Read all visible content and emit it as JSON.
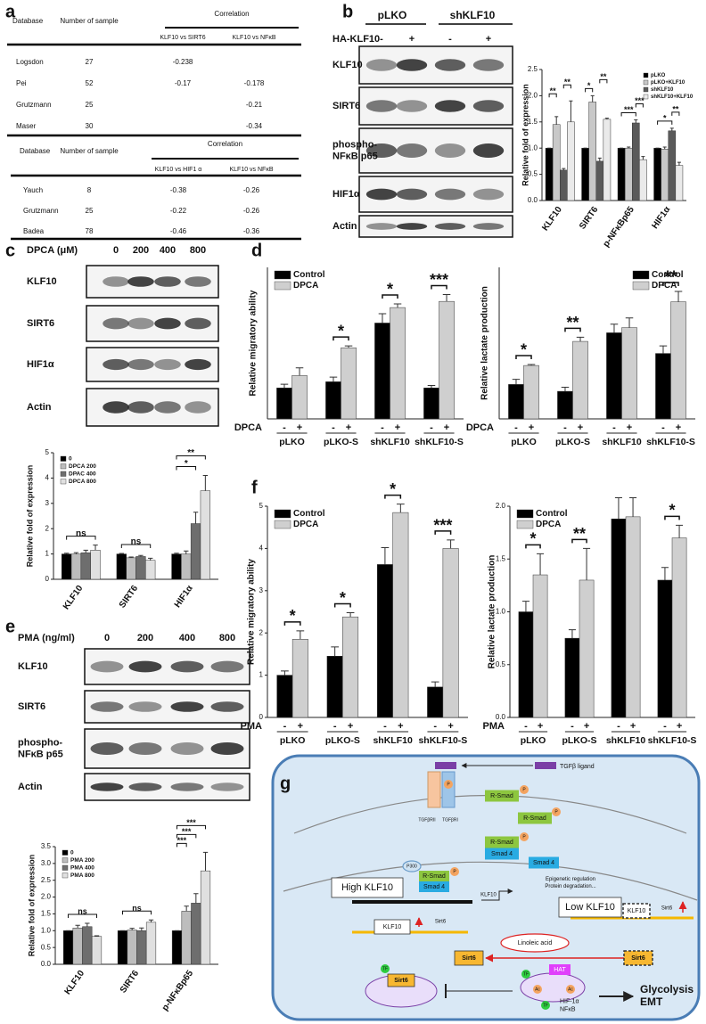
{
  "panel_labels": [
    "a",
    "b",
    "c",
    "d",
    "e",
    "f",
    "g"
  ],
  "tables": [
    {
      "columns": [
        "Database",
        "Number of sample"
      ],
      "group": "Correlation",
      "subcolumns": [
        "KLF10 vs SIRT6",
        "KLF10 vs NFκB"
      ],
      "rows": [
        [
          "Logsdon",
          27,
          -0.238,
          null
        ],
        [
          "Pei",
          52,
          -0.17,
          -0.178
        ],
        [
          "Grutzmann",
          25,
          null,
          -0.21
        ],
        [
          "Maser",
          30,
          null,
          -0.34
        ]
      ]
    },
    {
      "columns": [
        "Database",
        "Number of sample"
      ],
      "group": "Correlation",
      "subcolumns": [
        "KLF10 vs HIF1 α",
        "KLF10 vs NFκB"
      ],
      "rows": [
        [
          "Yauch",
          8,
          -0.38,
          -0.26
        ],
        [
          "Grutzmann",
          25,
          -0.22,
          -0.26
        ],
        [
          "Badea",
          78,
          -0.46,
          -0.36
        ]
      ]
    }
  ],
  "blots": [
    {
      "groups": [
        "pLKO",
        "shKLF10"
      ],
      "treatment": "HA-KLF10",
      "lanes": [
        "-",
        "+",
        "-",
        "+"
      ],
      "rows": [
        "KLF10",
        "SIRT6",
        "phospho-\nNFκB p65",
        "HIF1α",
        "Actin"
      ]
    },
    {
      "treatment": "DPCA (μM)",
      "lanes": [
        "0",
        "200",
        "400",
        "800"
      ],
      "rows": [
        "KLF10",
        "SIRT6",
        "HIF1α",
        "Actin"
      ]
    },
    {
      "treatment": "PMA (ng/ml)",
      "lanes": [
        "0",
        "200",
        "400",
        "800"
      ],
      "rows": [
        "KLF10",
        "SIRT6",
        "phospho-\nNFκB p65",
        "Actin"
      ]
    }
  ],
  "chart_data": [
    {
      "type": "bar",
      "ylabel": "Relative fold of expression",
      "categories": [
        "KLF10",
        "SIRT6",
        "p-NFκBp65",
        "HIF1α"
      ],
      "series": [
        {
          "name": "pLKO",
          "color": "#000000",
          "values": [
            1,
            1,
            1,
            1
          ],
          "errors": [
            0,
            0,
            0,
            0
          ]
        },
        {
          "name": "pLKO+KLF10",
          "color": "#c8c8c8",
          "values": [
            1.45,
            1.88,
            1.0,
            0.98
          ],
          "errors": [
            0.15,
            0.12,
            0.02,
            0.04
          ]
        },
        {
          "name": "shKLF10",
          "color": "#5a5a5a",
          "values": [
            0.58,
            0.75,
            1.48,
            1.33
          ],
          "errors": [
            0.03,
            0.06,
            0.06,
            0.05
          ]
        },
        {
          "name": "shKLF10+KLF10",
          "color": "#eaeaea",
          "values": [
            1.5,
            1.55,
            0.78,
            0.67
          ],
          "errors": [
            0.4,
            0.02,
            0.06,
            0.06
          ]
        }
      ],
      "ylim": [
        0,
        2.5
      ],
      "yticks": [
        {
          "value": 0,
          "label": "0.0"
        },
        0.5,
        {
          "value": 1,
          "label": "1.0"
        },
        1.5,
        {
          "value": 2,
          "label": "2.0"
        },
        2.5
      ],
      "legend": "upper right",
      "annotations": [
        {
          "text": "**",
          "category": 0,
          "series": [
            0,
            1
          ]
        },
        {
          "text": "**",
          "category": 0,
          "series": [
            2,
            3
          ]
        },
        {
          "text": "*",
          "category": 1,
          "series": [
            0,
            1
          ]
        },
        {
          "text": "**",
          "category": 1,
          "series": [
            2,
            3
          ]
        },
        {
          "text": "***",
          "category": 2,
          "series": [
            0,
            2
          ]
        },
        {
          "text": "***",
          "category": 2,
          "series": [
            2,
            3
          ]
        },
        {
          "text": "*",
          "category": 3,
          "series": [
            0,
            2
          ]
        },
        {
          "text": "**",
          "category": 3,
          "series": [
            2,
            3
          ]
        }
      ]
    },
    {
      "type": "bar",
      "ylabel": "Relative fold of expression",
      "categories": [
        "KLF10",
        "SIRT6",
        "HIF1α"
      ],
      "series": [
        {
          "name": "0",
          "color": "#000000",
          "values": [
            1,
            1,
            1
          ],
          "errors": [
            0.03,
            0.02,
            0.03
          ]
        },
        {
          "name": "DPCA 200",
          "color": "#bdbdbd",
          "values": [
            1.0,
            0.85,
            1.0
          ],
          "errors": [
            0.05,
            0.03,
            0.12
          ]
        },
        {
          "name": "DPAC 400",
          "color": "#6e6e6e",
          "values": [
            1.05,
            0.9,
            2.2
          ],
          "errors": [
            0.1,
            0.04,
            0.45
          ]
        },
        {
          "name": "DPCA 800",
          "color": "#e0e0e0",
          "values": [
            1.15,
            0.75,
            3.5
          ],
          "errors": [
            0.2,
            0.08,
            0.6
          ]
        }
      ],
      "ylim": [
        0,
        5
      ],
      "yticks": [
        0,
        1,
        2,
        3,
        4,
        5
      ],
      "legend": "upper left",
      "annotations": [
        {
          "text": "ns",
          "category": 0,
          "series": [
            0,
            3
          ]
        },
        {
          "text": "ns",
          "category": 1,
          "series": [
            0,
            3
          ]
        },
        {
          "text": "*",
          "category": 2,
          "series": [
            0,
            2
          ]
        },
        {
          "text": "**",
          "category": 2,
          "series": [
            0,
            3
          ]
        }
      ]
    },
    {
      "type": "bar",
      "ylabel": "Relative migratory ability",
      "categories": [
        "pLKO",
        "pLKO-S",
        "shKLF10",
        "shKLF10-S"
      ],
      "treatment": "DPCA",
      "treatment_levels": [
        "-",
        "+"
      ],
      "series": [
        {
          "name": "Control",
          "color": "#000000",
          "values": [
            1.0,
            1.2,
            3.1,
            1.0
          ],
          "errors": [
            0.12,
            0.15,
            0.3,
            0.08
          ]
        },
        {
          "name": "DPCA",
          "color": "#cfcfcf",
          "values": [
            1.4,
            2.3,
            3.6,
            3.8
          ],
          "errors": [
            0.25,
            0.06,
            0.12,
            0.22
          ]
        }
      ],
      "ylim": [
        0,
        4.9
      ],
      "legend": "upper left",
      "annotations": [
        {
          "text": "*",
          "category": 1,
          "series": [
            0,
            1
          ]
        },
        {
          "text": "*",
          "category": 2,
          "series": [
            0,
            1
          ]
        },
        {
          "text": "***",
          "category": 3,
          "series": [
            0,
            1
          ]
        }
      ]
    },
    {
      "type": "bar",
      "ylabel": "Relative lactate production",
      "categories": [
        "pLKO",
        "pLKO-S",
        "shKLF10",
        "shKLF10-S"
      ],
      "treatment": "DPCA",
      "treatment_levels": [
        "-",
        "+"
      ],
      "series": [
        {
          "name": "Control",
          "color": "#000000",
          "values": [
            1.0,
            0.8,
            2.5,
            1.9
          ],
          "errors": [
            0.15,
            0.12,
            0.25,
            0.22
          ]
        },
        {
          "name": "DPCA",
          "color": "#cfcfcf",
          "values": [
            1.55,
            2.25,
            2.65,
            3.4
          ],
          "errors": [
            0.03,
            0.12,
            0.28,
            0.3
          ]
        }
      ],
      "ylim": [
        0,
        4.4
      ],
      "legend": "upper right",
      "annotations": [
        {
          "text": "*",
          "category": 0,
          "series": [
            0,
            1
          ]
        },
        {
          "text": "**",
          "category": 1,
          "series": [
            0,
            1
          ]
        },
        {
          "text": "**",
          "category": 3,
          "series": [
            0,
            1
          ]
        }
      ]
    },
    {
      "type": "bar",
      "ylabel": "Relative fold of expression",
      "categories": [
        "KLF10",
        "SIRT6",
        "p-NFκBp65"
      ],
      "series": [
        {
          "name": "0",
          "color": "#000000",
          "values": [
            1,
            1,
            1
          ],
          "errors": [
            0,
            0,
            0
          ]
        },
        {
          "name": "PMA 200",
          "color": "#bdbdbd",
          "values": [
            1.08,
            1.02,
            1.58
          ],
          "errors": [
            0.08,
            0.05,
            0.15
          ]
        },
        {
          "name": "PMA 400",
          "color": "#6e6e6e",
          "values": [
            1.12,
            1.0,
            1.82
          ],
          "errors": [
            0.1,
            0.08,
            0.28
          ]
        },
        {
          "name": "PMA 800",
          "color": "#e0e0e0",
          "values": [
            0.83,
            1.25,
            2.78
          ],
          "errors": [
            0.02,
            0.07,
            0.55
          ]
        }
      ],
      "ylim": [
        0,
        3.5
      ],
      "yticks": [
        {
          "value": 0,
          "label": "0.0"
        },
        0.5,
        {
          "value": 1,
          "label": "1.0"
        },
        1.5,
        {
          "value": 2,
          "label": "2.0"
        },
        2.5,
        {
          "value": 3,
          "label": "3.0"
        },
        3.5
      ],
      "legend": "upper left",
      "annotations": [
        {
          "text": "ns",
          "category": 0,
          "series": [
            0,
            3
          ]
        },
        {
          "text": "ns",
          "category": 1,
          "series": [
            0,
            3
          ]
        },
        {
          "text": "***",
          "category": 2,
          "series": [
            0,
            1
          ]
        },
        {
          "text": "***",
          "category": 2,
          "series": [
            0,
            2
          ]
        },
        {
          "text": "***",
          "category": 2,
          "series": [
            0,
            3
          ]
        }
      ]
    },
    {
      "type": "bar",
      "ylabel": "Relative migratory ability",
      "categories": [
        "pLKO",
        "pLKO-S",
        "shKLF10",
        "shKLF10-S"
      ],
      "treatment": "PMA",
      "treatment_levels": [
        "-",
        "+"
      ],
      "series": [
        {
          "name": "Control",
          "color": "#000000",
          "values": [
            1.0,
            1.45,
            3.62,
            0.72
          ],
          "errors": [
            0.1,
            0.22,
            0.4,
            0.12
          ]
        },
        {
          "name": "DPCA",
          "color": "#cfcfcf",
          "values": [
            1.85,
            2.38,
            4.85,
            4.0
          ],
          "errors": [
            0.2,
            0.1,
            0.2,
            0.2
          ]
        }
      ],
      "ylim": [
        0,
        5
      ],
      "yticks": [
        0,
        1,
        2,
        3,
        4,
        5
      ],
      "legend": "upper left",
      "annotations": [
        {
          "text": "*",
          "category": 0,
          "series": [
            0,
            1
          ]
        },
        {
          "text": "*",
          "category": 1,
          "series": [
            0,
            1
          ]
        },
        {
          "text": "*",
          "category": 2,
          "series": [
            0,
            1
          ]
        },
        {
          "text": "***",
          "category": 3,
          "series": [
            0,
            1
          ]
        }
      ]
    },
    {
      "type": "bar",
      "ylabel": "Relative lactate production",
      "categories": [
        "pLKO",
        "pLKO-S",
        "shKLF10",
        "shKLF10-S"
      ],
      "treatment": "PMA",
      "treatment_levels": [
        "-",
        "+"
      ],
      "series": [
        {
          "name": "Control",
          "color": "#000000",
          "values": [
            1.0,
            0.75,
            1.88,
            1.3
          ],
          "errors": [
            0.1,
            0.08,
            0.2,
            0.12
          ]
        },
        {
          "name": "DPCA",
          "color": "#cfcfcf",
          "values": [
            1.35,
            1.3,
            1.9,
            1.7
          ],
          "errors": [
            0.2,
            0.3,
            0.18,
            0.12
          ]
        }
      ],
      "ylim": [
        0,
        2
      ],
      "yticks": [
        {
          "value": 0,
          "label": "0.0"
        },
        0.5,
        {
          "value": 1,
          "label": "1.0"
        },
        1.5,
        {
          "value": 2,
          "label": "2.0"
        }
      ],
      "legend": "upper left",
      "annotations": [
        {
          "text": "*",
          "category": 0,
          "series": [
            0,
            1
          ]
        },
        {
          "text": "**",
          "category": 1,
          "series": [
            0,
            1
          ]
        },
        {
          "text": "*",
          "category": 3,
          "series": [
            0,
            1
          ]
        }
      ]
    }
  ],
  "diagram": {
    "labels": [
      "TGFβ ligand",
      "TGFβRII",
      "TGFβRI",
      "R-Smad",
      "Smad 4",
      "P",
      "P300",
      "Epigenetic regulation\nProtein degradation...",
      "High KLF10",
      "KLF10",
      "Low KLF10",
      "Sirt6",
      "Linoleic acid",
      "HAT",
      "TF",
      "Ac",
      "HIF-1α\nNFκB",
      "Glycolysis\nEMT"
    ]
  }
}
